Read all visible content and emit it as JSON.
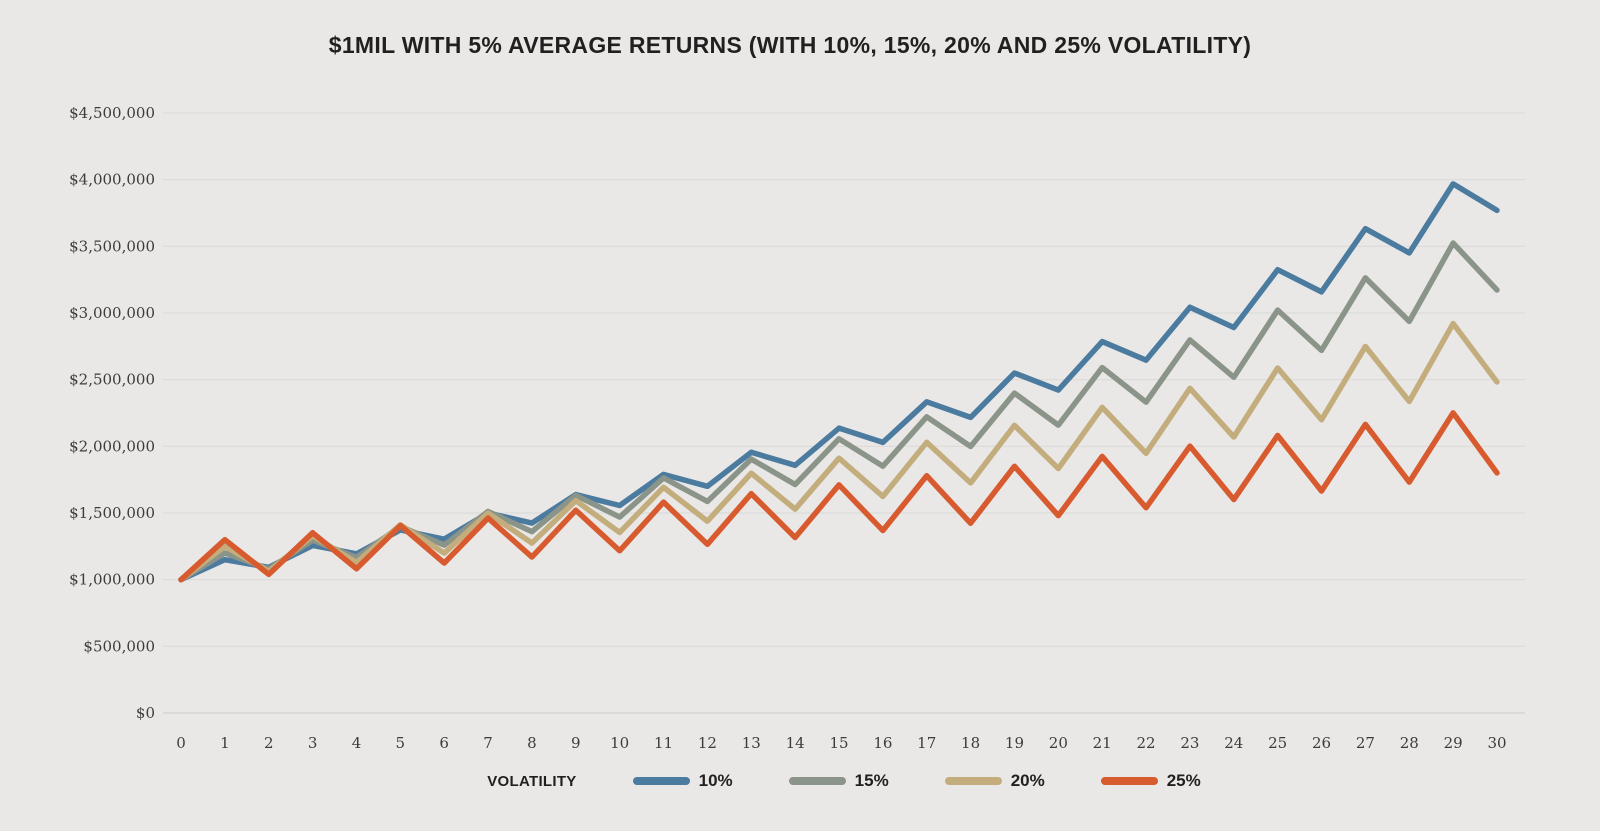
{
  "title": "$1MIL WITH 5% AVERAGE RETURNS (WITH 10%, 15%, 20% AND 25% VOLATILITY)",
  "colors": {
    "background": "#e9e8e6",
    "gridline": "#dcdbd9",
    "baseline": "#d2d1cf",
    "tick_text": "#3d3c3a",
    "title_text": "#231f20"
  },
  "chart_data": {
    "type": "line",
    "title": "$1MIL WITH 5% AVERAGE RETURNS (WITH 10%, 15%, 20% AND 25% VOLATILITY)",
    "xlabel": "",
    "ylabel": "",
    "x": [
      0,
      1,
      2,
      3,
      4,
      5,
      6,
      7,
      8,
      9,
      10,
      11,
      12,
      13,
      14,
      15,
      16,
      17,
      18,
      19,
      20,
      21,
      22,
      23,
      24,
      25,
      26,
      27,
      28,
      29,
      30
    ],
    "ylim": [
      0,
      4500000
    ],
    "yticks": [
      {
        "value": 0,
        "label": "$0"
      },
      {
        "value": 500000,
        "label": "$500,000"
      },
      {
        "value": 1000000,
        "label": "$1,000,000"
      },
      {
        "value": 1500000,
        "label": "$1,500,000"
      },
      {
        "value": 2000000,
        "label": "$2,000,000"
      },
      {
        "value": 2500000,
        "label": "$2,500,000"
      },
      {
        "value": 3000000,
        "label": "$3,000,000"
      },
      {
        "value": 3500000,
        "label": "$3,500,000"
      },
      {
        "value": 4000000,
        "label": "$4,000,000"
      },
      {
        "value": 4500000,
        "label": "$4,500,000"
      }
    ],
    "grid": "horizontal",
    "legend_title": "VOLATILITY",
    "legend_position": "bottom",
    "series": [
      {
        "name": "10%",
        "color": "#4c7ba0",
        "values": [
          1000000,
          1150000,
          1092500,
          1256375,
          1193556,
          1372590,
          1303960,
          1499554,
          1424577,
          1638263,
          1556350,
          1789802,
          1700312,
          1955359,
          1857591,
          2136230,
          2029418,
          2333831,
          2217139,
          2549710,
          2422225,
          2785559,
          2646281,
          3043223,
          2891062,
          3324721,
          3158485,
          3632258,
          3450645,
          3968241,
          3769829
        ]
      },
      {
        "name": "15%",
        "color": "#8b9488",
        "values": [
          1000000,
          1200000,
          1080000,
          1296000,
          1166400,
          1399680,
          1259712,
          1511654,
          1360489,
          1632587,
          1469328,
          1763194,
          1586874,
          1904249,
          1713824,
          2056589,
          1850930,
          2221116,
          1999005,
          2398806,
          2158925,
          2590710,
          2331639,
          2797967,
          2518170,
          3021804,
          2719624,
          3263548,
          2937194,
          3524632,
          3172169
        ]
      },
      {
        "name": "20%",
        "color": "#c4ad7d",
        "values": [
          1000000,
          1250000,
          1062500,
          1328125,
          1128906,
          1411133,
          1199463,
          1499329,
          1274429,
          1593037,
          1354081,
          1692601,
          1438711,
          1798389,
          1528631,
          1910788,
          1624170,
          2030213,
          1725681,
          2157101,
          1833536,
          2291920,
          1948132,
          2435165,
          2069890,
          2587362,
          2199258,
          2749073,
          2336712,
          2920890,
          2482756
        ]
      },
      {
        "name": "25%",
        "color": "#d85a2f",
        "values": [
          1000000,
          1300000,
          1040000,
          1352000,
          1081600,
          1406080,
          1124864,
          1462323,
          1169859,
          1520816,
          1216653,
          1581649,
          1265319,
          1644915,
          1315932,
          1710711,
          1368569,
          1779140,
          1423312,
          1850305,
          1480244,
          1924318,
          1539454,
          2001290,
          1601032,
          2081342,
          1665074,
          2164596,
          1731676,
          2251179,
          1800944
        ]
      }
    ]
  }
}
